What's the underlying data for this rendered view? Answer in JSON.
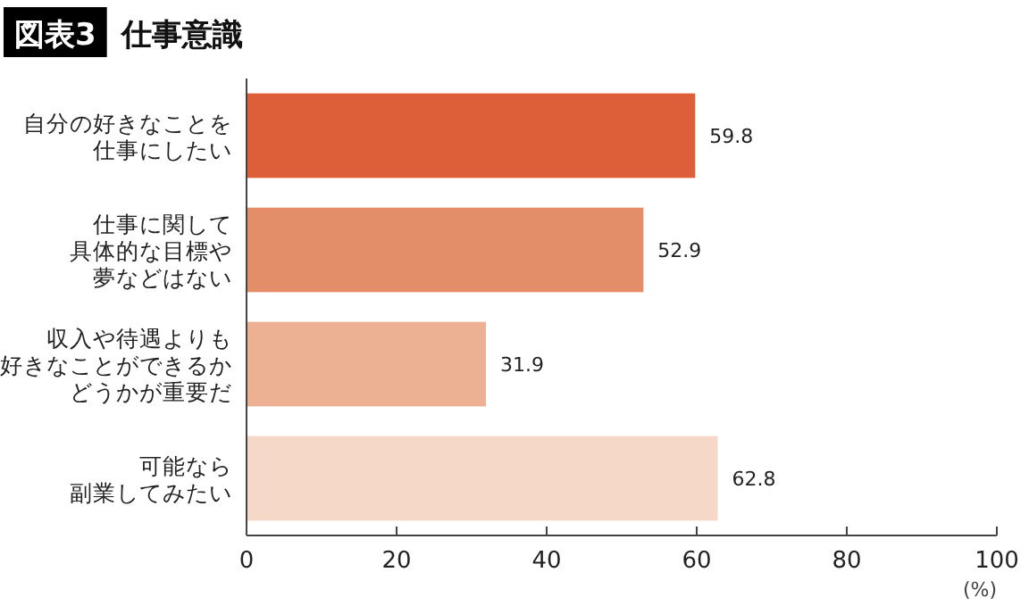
{
  "chart_data": {
    "type": "bar",
    "orientation": "horizontal",
    "title": "図表3",
    "subtitle": "仕事意識",
    "xlabel": "(%)",
    "categories": [
      "自分の好きなことを仕事にしたい",
      "仕事に関して具体的な目標や夢などはない",
      "収入や待遇よりも好きなことができるかどうかが重要だ",
      "可能なら副業してみたい"
    ],
    "values": [
      59.8,
      52.9,
      31.9,
      62.8
    ],
    "colors": [
      "#dc5f3a",
      "#e48e69",
      "#ecb092",
      "#f6d8c8"
    ],
    "xlim": [
      0,
      100
    ],
    "xticks": [
      0,
      20,
      40,
      60,
      80,
      100
    ],
    "data_labels": true,
    "grid": false
  }
}
